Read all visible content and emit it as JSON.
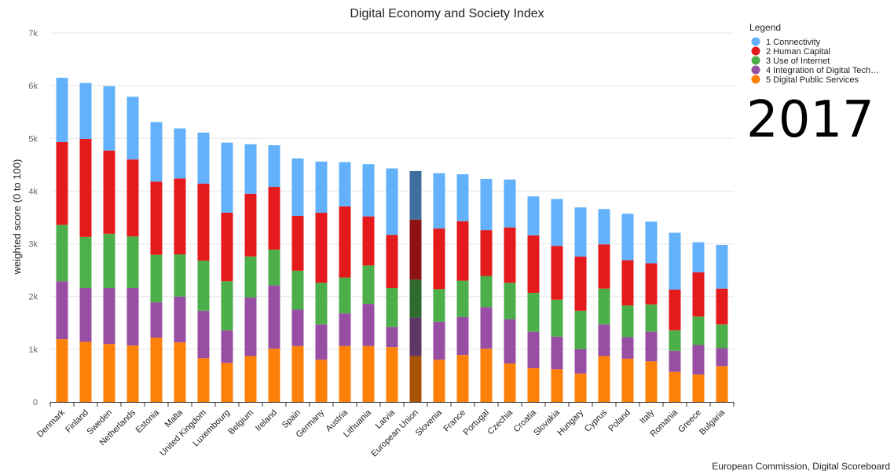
{
  "chart_data": {
    "type": "bar",
    "stacked": true,
    "title": "Digital Economy and Society Index",
    "ylabel": "weighted score (0 to 100)",
    "ylim": [
      0,
      7000
    ],
    "yticks": [
      0,
      1000,
      2000,
      3000,
      4000,
      5000,
      6000,
      7000
    ],
    "ytick_labels": [
      "0",
      "1k",
      "2k",
      "3k",
      "4k",
      "5k",
      "6k",
      "7k"
    ],
    "grid": true,
    "legend_title": "Legend",
    "legend_position": "top-right",
    "year": "2017",
    "source": "European Commission, Digital Scoreboard",
    "highlight": "European Union",
    "categories": [
      "Denmark",
      "Finland",
      "Sweden",
      "Netherlands",
      "Estonia",
      "Malta",
      "United Kingdom",
      "Luxembourg",
      "Belgium",
      "Ireland",
      "Spain",
      "Germany",
      "Austria",
      "Lithuania",
      "Latvia",
      "European Union",
      "Slovenia",
      "France",
      "Portugal",
      "Czechia",
      "Croatia",
      "Slovakia",
      "Hungary",
      "Cyprus",
      "Poland",
      "Italy",
      "Romania",
      "Greece",
      "Bulgaria"
    ],
    "series": [
      {
        "name": "5 Digital Public Services",
        "color": "#fd8008",
        "highlight_color": "#a85407",
        "values": [
          1190,
          1140,
          1100,
          1070,
          1220,
          1130,
          830,
          740,
          870,
          1010,
          1060,
          800,
          1060,
          1060,
          1040,
          870,
          800,
          890,
          1010,
          730,
          640,
          620,
          540,
          870,
          820,
          770,
          570,
          520,
          680
        ]
      },
      {
        "name": "4 Integration of Digital Tech…",
        "color": "#984ea3",
        "highlight_color": "#5e3766",
        "values": [
          1100,
          1020,
          1060,
          1090,
          670,
          870,
          900,
          620,
          1110,
          1200,
          690,
          670,
          620,
          800,
          380,
          730,
          720,
          720,
          790,
          840,
          690,
          620,
          460,
          600,
          410,
          560,
          400,
          560,
          340
        ]
      },
      {
        "name": "3 Use of Internet",
        "color": "#4daf4a",
        "highlight_color": "#2f6b2e",
        "values": [
          1070,
          970,
          1030,
          980,
          900,
          800,
          950,
          930,
          780,
          680,
          740,
          790,
          680,
          730,
          740,
          720,
          620,
          690,
          590,
          690,
          740,
          700,
          730,
          680,
          600,
          520,
          390,
          540,
          450
        ]
      },
      {
        "name": "2 Human Capital",
        "color": "#e41a1c",
        "highlight_color": "#8e1214",
        "values": [
          1570,
          1860,
          1580,
          1460,
          1390,
          1440,
          1460,
          1300,
          1190,
          1190,
          1040,
          1330,
          1350,
          930,
          1010,
          1140,
          1150,
          1130,
          870,
          1050,
          1090,
          1020,
          1030,
          840,
          860,
          780,
          770,
          840,
          680
        ]
      },
      {
        "name": "1 Connectivity",
        "color": "#62b1fa",
        "highlight_color": "#3f6f9e",
        "values": [
          1220,
          1060,
          1220,
          1190,
          1130,
          950,
          970,
          1330,
          940,
          790,
          1090,
          970,
          840,
          990,
          1260,
          920,
          1050,
          890,
          970,
          910,
          740,
          890,
          930,
          670,
          880,
          790,
          1080,
          570,
          830
        ]
      }
    ]
  }
}
